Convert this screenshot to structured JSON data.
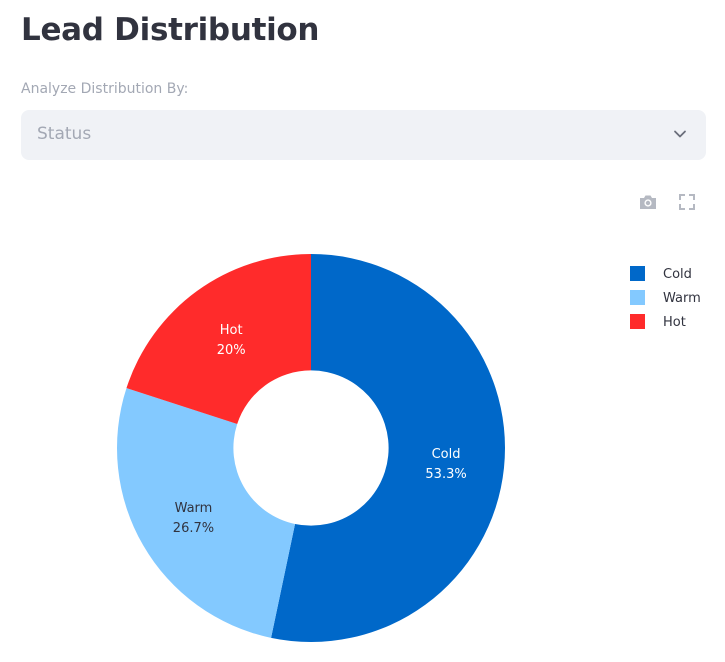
{
  "header": {
    "title": "Lead Distribution"
  },
  "selector": {
    "label": "Analyze Distribution By:",
    "value": "Status"
  },
  "toolbar": {
    "icons": [
      "camera-icon",
      "fullscreen-icon"
    ]
  },
  "chart_data": {
    "type": "pie",
    "hole": 0.4,
    "labels": [
      "Cold",
      "Warm",
      "Hot"
    ],
    "values": [
      53.3,
      26.7,
      20
    ],
    "percent_labels": [
      "53.3%",
      "26.7%",
      "20%"
    ],
    "colors": [
      "#0068c9",
      "#83c9ff",
      "#ff2b2b"
    ],
    "legend_position": "top-right"
  }
}
